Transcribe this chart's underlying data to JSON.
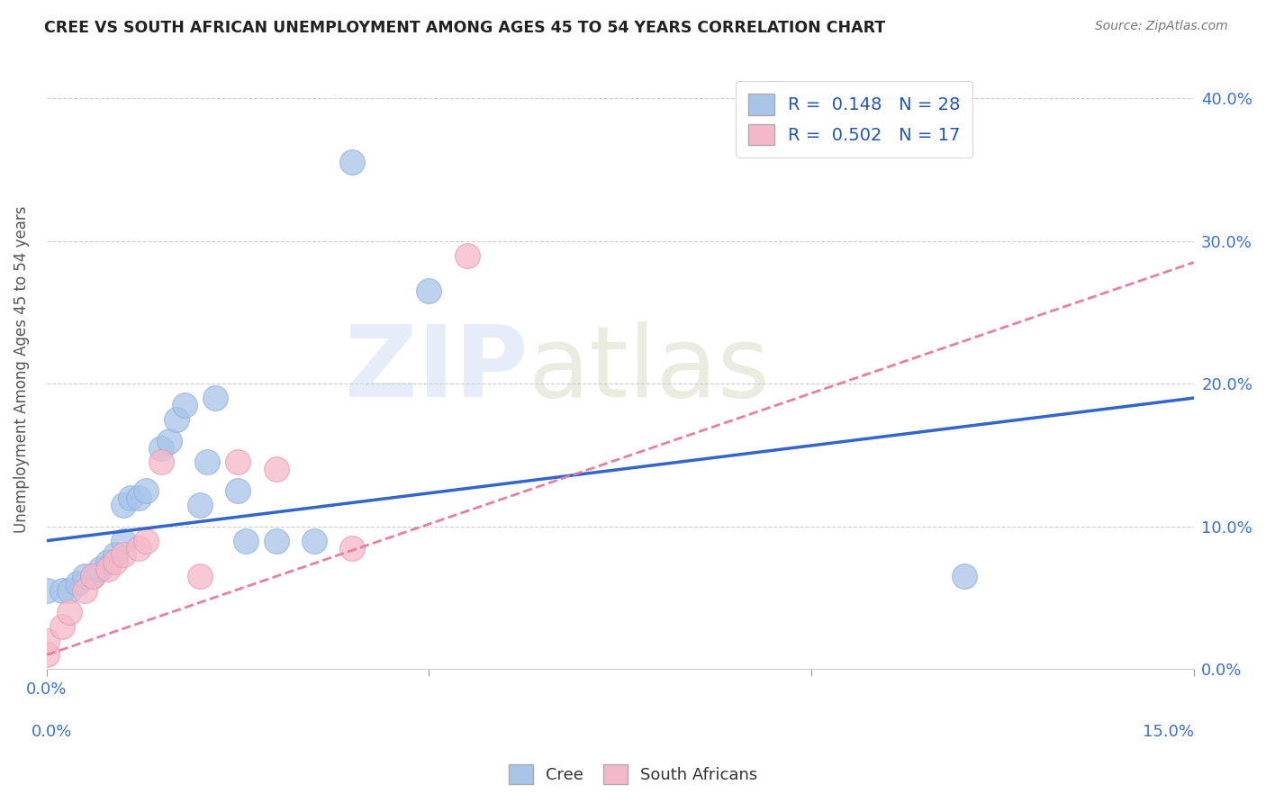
{
  "title": "CREE VS SOUTH AFRICAN UNEMPLOYMENT AMONG AGES 45 TO 54 YEARS CORRELATION CHART",
  "source": "Source: ZipAtlas.com",
  "ylabel": "Unemployment Among Ages 45 to 54 years",
  "xlim": [
    0.0,
    0.15
  ],
  "ylim": [
    0.0,
    0.42
  ],
  "cree_color": "#a8c4e8",
  "sa_color": "#f5b8c8",
  "cree_line_color": "#3366cc",
  "sa_line_color": "#e87fa0",
  "grid_color": "#cccccc",
  "cree_x": [
    0.0,
    0.002,
    0.003,
    0.004,
    0.005,
    0.006,
    0.007,
    0.008,
    0.009,
    0.01,
    0.01,
    0.011,
    0.012,
    0.013,
    0.015,
    0.016,
    0.017,
    0.018,
    0.02,
    0.021,
    0.022,
    0.025,
    0.026,
    0.03,
    0.035,
    0.04,
    0.05,
    0.12
  ],
  "cree_y": [
    0.055,
    0.055,
    0.055,
    0.06,
    0.065,
    0.065,
    0.07,
    0.075,
    0.08,
    0.09,
    0.115,
    0.12,
    0.12,
    0.125,
    0.155,
    0.16,
    0.175,
    0.185,
    0.115,
    0.145,
    0.19,
    0.125,
    0.09,
    0.09,
    0.09,
    0.355,
    0.265,
    0.065
  ],
  "sa_x": [
    0.0,
    0.0,
    0.002,
    0.003,
    0.005,
    0.006,
    0.008,
    0.009,
    0.01,
    0.012,
    0.013,
    0.015,
    0.02,
    0.025,
    0.03,
    0.04,
    0.055
  ],
  "sa_y": [
    0.01,
    0.02,
    0.03,
    0.04,
    0.055,
    0.065,
    0.07,
    0.075,
    0.08,
    0.085,
    0.09,
    0.145,
    0.065,
    0.145,
    0.14,
    0.085,
    0.29
  ],
  "cree_line_x0": 0.0,
  "cree_line_y0": 0.09,
  "cree_line_x1": 0.15,
  "cree_line_y1": 0.19,
  "sa_line_x0": 0.0,
  "sa_line_y0": 0.01,
  "sa_line_x1": 0.15,
  "sa_line_y1": 0.285
}
